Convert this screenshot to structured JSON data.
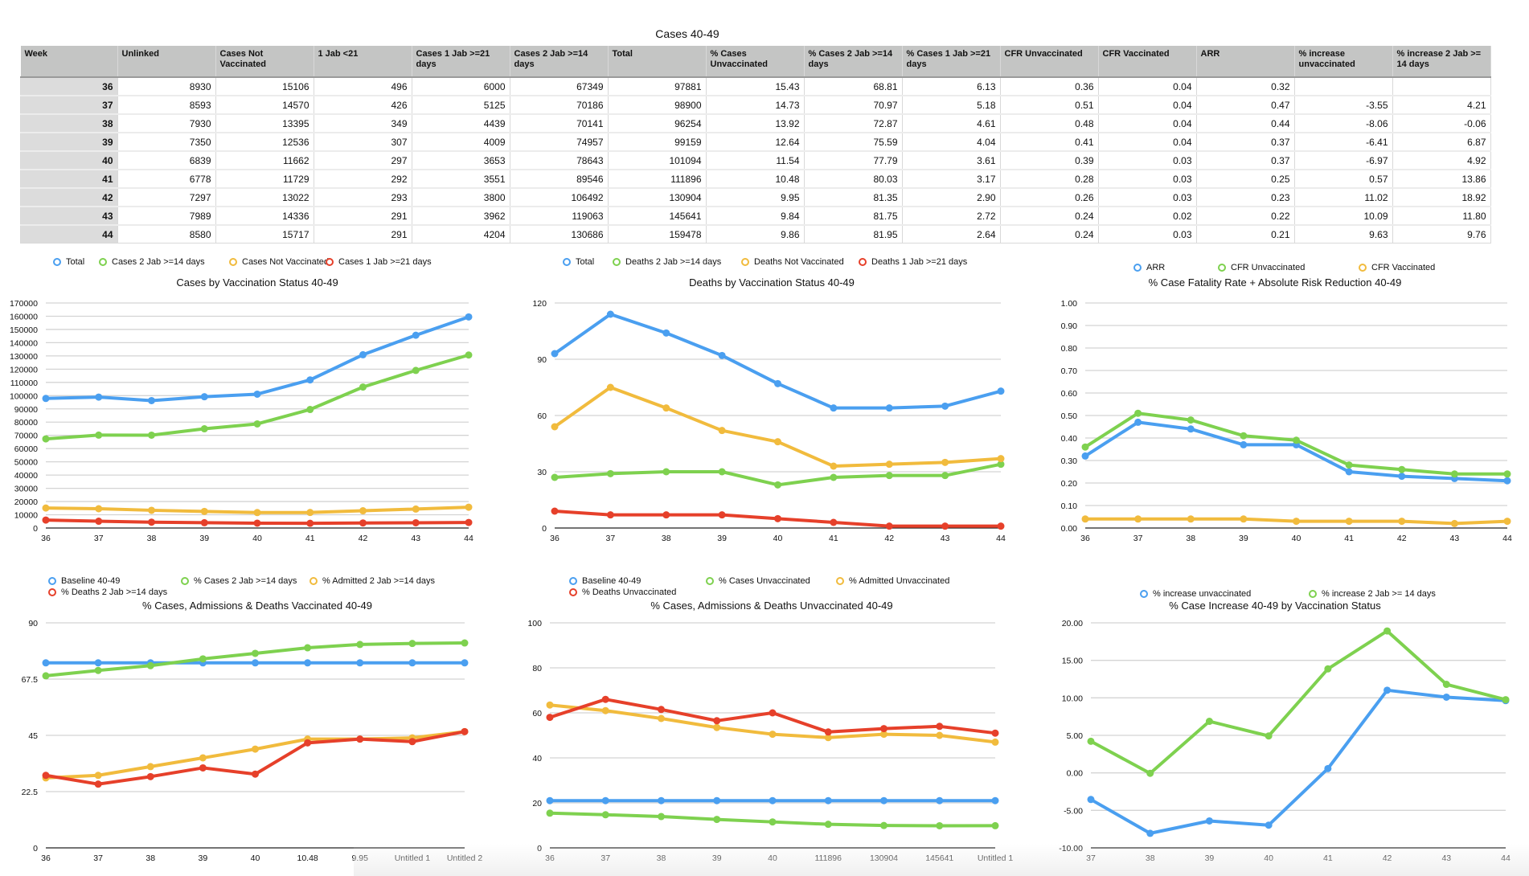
{
  "table": {
    "title": "Cases 40-49",
    "headers": [
      "Week",
      "Unlinked",
      "Cases Not Vaccinated",
      "1 Jab <21",
      "Cases 1 Jab >=21 days",
      "Cases 2 Jab >=14 days",
      "Total",
      "% Cases Unvaccinated",
      "% Cases 2 Jab >=14 days",
      "% Cases 1 Jab >=21 days",
      "CFR Unvaccinated",
      "CFR Vaccinated",
      "ARR",
      "% increase unvaccinated",
      "% increase 2 Jab >= 14 days"
    ],
    "rows": [
      [
        "36",
        "8930",
        "15106",
        "496",
        "6000",
        "67349",
        "97881",
        "15.43",
        "68.81",
        "6.13",
        "0.36",
        "0.04",
        "0.32",
        "",
        ""
      ],
      [
        "37",
        "8593",
        "14570",
        "426",
        "5125",
        "70186",
        "98900",
        "14.73",
        "70.97",
        "5.18",
        "0.51",
        "0.04",
        "0.47",
        "-3.55",
        "4.21"
      ],
      [
        "38",
        "7930",
        "13395",
        "349",
        "4439",
        "70141",
        "96254",
        "13.92",
        "72.87",
        "4.61",
        "0.48",
        "0.04",
        "0.44",
        "-8.06",
        "-0.06"
      ],
      [
        "39",
        "7350",
        "12536",
        "307",
        "4009",
        "74957",
        "99159",
        "12.64",
        "75.59",
        "4.04",
        "0.41",
        "0.04",
        "0.37",
        "-6.41",
        "6.87"
      ],
      [
        "40",
        "6839",
        "11662",
        "297",
        "3653",
        "78643",
        "101094",
        "11.54",
        "77.79",
        "3.61",
        "0.39",
        "0.03",
        "0.37",
        "-6.97",
        "4.92"
      ],
      [
        "41",
        "6778",
        "11729",
        "292",
        "3551",
        "89546",
        "111896",
        "10.48",
        "80.03",
        "3.17",
        "0.28",
        "0.03",
        "0.25",
        "0.57",
        "13.86"
      ],
      [
        "42",
        "7297",
        "13022",
        "293",
        "3800",
        "106492",
        "130904",
        "9.95",
        "81.35",
        "2.90",
        "0.26",
        "0.03",
        "0.23",
        "11.02",
        "18.92"
      ],
      [
        "43",
        "7989",
        "14336",
        "291",
        "3962",
        "119063",
        "145641",
        "9.84",
        "81.75",
        "2.72",
        "0.24",
        "0.02",
        "0.22",
        "10.09",
        "11.80"
      ],
      [
        "44",
        "8580",
        "15717",
        "291",
        "4204",
        "130686",
        "159478",
        "9.86",
        "81.95",
        "2.64",
        "0.24",
        "0.03",
        "0.21",
        "9.63",
        "9.76"
      ]
    ]
  },
  "colors": {
    "blue": "#4a9ff0",
    "green": "#7ed14f",
    "yellow": "#f1bb3d",
    "red": "#e6402a"
  },
  "chart_data": [
    {
      "type": "line",
      "title": "Cases by Vaccination Status 40-49",
      "categories": [
        "36",
        "37",
        "38",
        "39",
        "40",
        "41",
        "42",
        "43",
        "44"
      ],
      "ylim": [
        0,
        170000
      ],
      "yticks": [
        "0",
        "10000",
        "20000",
        "30000",
        "40000",
        "50000",
        "60000",
        "70000",
        "80000",
        "90000",
        "100000",
        "110000",
        "120000",
        "130000",
        "140000",
        "150000",
        "160000",
        "170000"
      ],
      "ystep": 10000,
      "legend": "top",
      "grid": true,
      "series": [
        {
          "name": "Total",
          "color": "blue",
          "values": [
            97881,
            98900,
            96254,
            99159,
            101094,
            111896,
            130904,
            145641,
            159478
          ]
        },
        {
          "name": "Cases 2 Jab >=14 days",
          "color": "green",
          "values": [
            67349,
            70186,
            70141,
            74957,
            78643,
            89546,
            106492,
            119063,
            130686
          ]
        },
        {
          "name": "Cases Not Vaccinated",
          "color": "yellow",
          "values": [
            15106,
            14570,
            13395,
            12536,
            11662,
            11729,
            13022,
            14336,
            15717
          ]
        },
        {
          "name": "Cases 1 Jab >=21 days",
          "color": "red",
          "values": [
            6000,
            5125,
            4439,
            4009,
            3653,
            3551,
            3800,
            3962,
            4204
          ]
        }
      ]
    },
    {
      "type": "line",
      "title": "Deaths by Vaccination Status 40-49",
      "categories": [
        "36",
        "37",
        "38",
        "39",
        "40",
        "41",
        "42",
        "43",
        "44"
      ],
      "ylim": [
        0,
        120
      ],
      "yticks": [
        "0",
        "30",
        "60",
        "90",
        "120"
      ],
      "ystep": 30,
      "legend": "top",
      "grid": true,
      "series": [
        {
          "name": "Total",
          "color": "blue",
          "values": [
            93,
            114,
            104,
            92,
            77,
            64,
            64,
            65,
            73
          ]
        },
        {
          "name": "Deaths 2 Jab >=14 days",
          "color": "green",
          "values": [
            27,
            29,
            30,
            30,
            23,
            27,
            28,
            28,
            34
          ]
        },
        {
          "name": "Deaths Not Vaccinated",
          "color": "yellow",
          "values": [
            54,
            75,
            64,
            52,
            46,
            33,
            34,
            35,
            37
          ]
        },
        {
          "name": "Deaths 1 Jab >=21 days",
          "color": "red",
          "values": [
            9,
            7,
            7,
            7,
            5,
            3,
            1,
            1,
            1
          ]
        }
      ]
    },
    {
      "type": "line",
      "title": "% Case Fatality Rate + Absolute Risk Reduction 40-49",
      "categories": [
        "36",
        "37",
        "38",
        "39",
        "40",
        "41",
        "42",
        "43",
        "44"
      ],
      "ylim": [
        0,
        1
      ],
      "yticks": [
        "0.00",
        "0.10",
        "0.20",
        "0.30",
        "0.40",
        "0.50",
        "0.60",
        "0.70",
        "0.80",
        "0.90",
        "1.00"
      ],
      "ystep": 0.1,
      "legend": "top",
      "grid": true,
      "series": [
        {
          "name": "ARR",
          "color": "blue",
          "values": [
            0.32,
            0.47,
            0.44,
            0.37,
            0.37,
            0.25,
            0.23,
            0.22,
            0.21
          ]
        },
        {
          "name": "CFR Unvaccinated",
          "color": "green",
          "values": [
            0.36,
            0.51,
            0.48,
            0.41,
            0.39,
            0.28,
            0.26,
            0.24,
            0.24
          ]
        },
        {
          "name": "CFR Vaccinated",
          "color": "yellow",
          "values": [
            0.04,
            0.04,
            0.04,
            0.04,
            0.03,
            0.03,
            0.03,
            0.02,
            0.03
          ]
        }
      ]
    },
    {
      "type": "line",
      "title": "% Cases, Admissions & Deaths Vaccinated 40-49",
      "categories": [
        "36",
        "37",
        "38",
        "39",
        "40",
        "10.48",
        "9.95",
        "Untitled 1",
        "Untitled 2"
      ],
      "ylim": [
        0,
        90
      ],
      "yticks": [
        "0",
        "22.5",
        "45",
        "67.5",
        "90"
      ],
      "ystep": 22.5,
      "legend": "top",
      "grid": true,
      "series": [
        {
          "name": "Baseline 40-49",
          "color": "blue",
          "values": [
            74,
            74,
            74,
            74,
            74,
            74,
            74,
            74,
            74
          ]
        },
        {
          "name": "% Cases 2 Jab >=14 days",
          "color": "green",
          "values": [
            68.81,
            70.97,
            72.87,
            75.59,
            77.79,
            80.03,
            81.35,
            81.75,
            81.95
          ]
        },
        {
          "name": "% Admitted 2 Jab >=14 days",
          "color": "yellow",
          "values": [
            28,
            29,
            32.5,
            36,
            39.5,
            43.5,
            43.5,
            44,
            46.5
          ]
        },
        {
          "name": "% Deaths 2 Jab >=14 days",
          "color": "red",
          "values": [
            29,
            25.5,
            28.5,
            32,
            29.5,
            42,
            43.5,
            42.5,
            46.5
          ]
        }
      ]
    },
    {
      "type": "line",
      "title": "% Cases, Admissions & Deaths Unvaccinated 40-49",
      "categories": [
        "36",
        "37",
        "38",
        "39",
        "40",
        "111896",
        "130904",
        "145641",
        "Untitled 1"
      ],
      "ylim": [
        0,
        100
      ],
      "yticks": [
        "0",
        "20",
        "40",
        "60",
        "80",
        "100"
      ],
      "ystep": 20,
      "legend": "top",
      "grid": true,
      "series": [
        {
          "name": "Baseline 40-49",
          "color": "blue",
          "values": [
            21,
            21,
            21,
            21,
            21,
            21,
            21,
            21,
            21
          ]
        },
        {
          "name": "% Cases Unvaccinated",
          "color": "green",
          "values": [
            15.43,
            14.73,
            13.92,
            12.64,
            11.54,
            10.48,
            9.95,
            9.84,
            9.86
          ]
        },
        {
          "name": "% Admitted Unvaccinated",
          "color": "yellow",
          "values": [
            63.5,
            61,
            57.5,
            53.5,
            50.5,
            49,
            50.5,
            50,
            47
          ]
        },
        {
          "name": "% Deaths Unvaccinated",
          "color": "red",
          "values": [
            58,
            66,
            61.5,
            56.5,
            60,
            51.5,
            53,
            54,
            51
          ]
        }
      ]
    },
    {
      "type": "line",
      "title": "% Case Increase 40-49 by Vaccination Status",
      "categories": [
        "37",
        "38",
        "39",
        "40",
        "41",
        "42",
        "43",
        "44"
      ],
      "ylim": [
        -10,
        20
      ],
      "yticks": [
        "-10.00",
        "-5.00",
        "0.00",
        "5.00",
        "10.00",
        "15.00",
        "20.00"
      ],
      "ystep": 5,
      "legend": "top",
      "grid": true,
      "series": [
        {
          "name": "% increase unvaccinated",
          "color": "blue",
          "values": [
            -3.55,
            -8.06,
            -6.41,
            -6.97,
            0.57,
            11.02,
            10.09,
            9.63
          ]
        },
        {
          "name": "% increase 2 Jab >= 14 days",
          "color": "green",
          "values": [
            4.21,
            -0.06,
            6.87,
            4.92,
            13.86,
            18.92,
            11.8,
            9.76
          ]
        }
      ]
    }
  ]
}
